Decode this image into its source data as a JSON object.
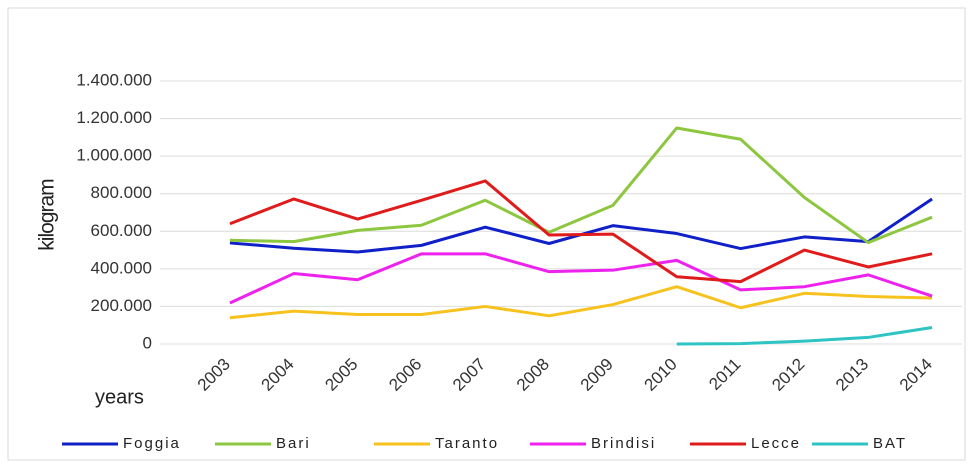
{
  "chart_data": {
    "type": "line",
    "y_label": "kilogram",
    "x_label": "years",
    "categories": [
      "2003",
      "2004",
      "2005",
      "2006",
      "2007",
      "2008",
      "2009",
      "2010",
      "2011",
      "2012",
      "2013",
      "2014"
    ],
    "series": [
      {
        "name": "Foggia",
        "color": "#1020c8",
        "values": [
          538000,
          510000,
          490000,
          525000,
          622000,
          535000,
          630000,
          588000,
          508000,
          570000,
          545000,
          772000
        ]
      },
      {
        "name": "Bari",
        "color": "#8dc63f",
        "values": [
          552000,
          545000,
          605000,
          632000,
          765000,
          595000,
          738000,
          1150000,
          1090000,
          780000,
          540000,
          675000
        ]
      },
      {
        "name": "Taranto",
        "color": "#f7c21d",
        "values": [
          140000,
          175000,
          157000,
          157000,
          200000,
          150000,
          210000,
          305000,
          193000,
          270000,
          253000,
          245000
        ]
      },
      {
        "name": "Brindisi",
        "color": "#ee22ee",
        "values": [
          218000,
          375000,
          342000,
          480000,
          480000,
          385000,
          393000,
          445000,
          288000,
          305000,
          368000,
          255000
        ]
      },
      {
        "name": "Lecce",
        "color": "#e01b1b",
        "values": [
          640000,
          772000,
          665000,
          765000,
          868000,
          580000,
          585000,
          358000,
          332000,
          500000,
          410000,
          480000
        ]
      },
      {
        "name": "BAT",
        "color": "#2ec4c4",
        "values": [
          null,
          null,
          null,
          null,
          null,
          null,
          null,
          0,
          2000,
          15000,
          35000,
          88000
        ]
      }
    ],
    "ylim": [
      0,
      1400000
    ],
    "yticks": [
      0,
      {
        "value": 200000,
        "label": "200.000"
      },
      {
        "value": 400000,
        "label": "400.000"
      },
      {
        "value": 600000,
        "label": "600.000"
      },
      {
        "value": 800000,
        "label": "800.000"
      },
      {
        "value": 1000000,
        "label": "1.000.000"
      },
      {
        "value": 1200000,
        "label": "1.200.000"
      },
      {
        "value": 1400000,
        "label": "1.400.000"
      }
    ],
    "grid": true,
    "legend": "bottom"
  }
}
